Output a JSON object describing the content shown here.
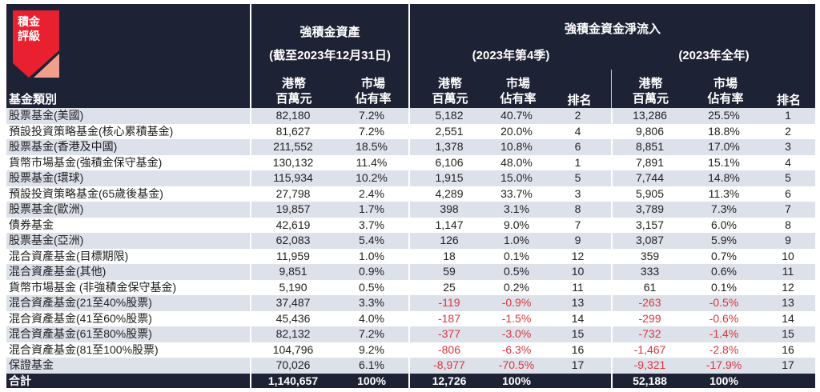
{
  "logo": {
    "text": "積金評級",
    "line1": "積金",
    "line2": "評級",
    "colors": {
      "red": "#e8202f",
      "salmon": "#f0a08a"
    }
  },
  "header": {
    "category": "基金類別",
    "assets_title": "強積金資產",
    "assets_sub": "(截至2023年12月31日)",
    "flow_title": "強積金資金淨流入",
    "q4_sub": "(2023年第4季)",
    "year_sub": "(2023年全年)",
    "hkd_l1": "港幣",
    "hkd_l2": "百萬元",
    "share_l1": "市場",
    "share_l2": "佔有率",
    "rank": "排名"
  },
  "colors": {
    "header_bg": "#1e2235",
    "stripe": "#dde1ea",
    "negative": "#d9363e"
  },
  "rows": [
    {
      "name": "股票基金(美國)",
      "assets": "82,180",
      "share": "7.2%",
      "q4": "5,182",
      "q4share": "40.7%",
      "q4rank": "2",
      "yr": "13,286",
      "yrshare": "25.5%",
      "yrrank": "1"
    },
    {
      "name": "預設投資策略基金(核心累積基金)",
      "assets": "81,627",
      "share": "7.2%",
      "q4": "2,551",
      "q4share": "20.0%",
      "q4rank": "4",
      "yr": "9,806",
      "yrshare": "18.8%",
      "yrrank": "2"
    },
    {
      "name": "股票基金(香港及中國)",
      "assets": "211,552",
      "share": "18.5%",
      "q4": "1,378",
      "q4share": "10.8%",
      "q4rank": "6",
      "yr": "8,851",
      "yrshare": "17.0%",
      "yrrank": "3"
    },
    {
      "name": "貨幣市場基金(強積金保守基金)",
      "assets": "130,132",
      "share": "11.4%",
      "q4": "6,106",
      "q4share": "48.0%",
      "q4rank": "1",
      "yr": "7,891",
      "yrshare": "15.1%",
      "yrrank": "4"
    },
    {
      "name": "股票基金(環球)",
      "assets": "115,934",
      "share": "10.2%",
      "q4": "1,915",
      "q4share": "15.0%",
      "q4rank": "5",
      "yr": "7,744",
      "yrshare": "14.8%",
      "yrrank": "5"
    },
    {
      "name": "預設投資策略基金(65歲後基金)",
      "assets": "27,798",
      "share": "2.4%",
      "q4": "4,289",
      "q4share": "33.7%",
      "q4rank": "3",
      "yr": "5,905",
      "yrshare": "11.3%",
      "yrrank": "6"
    },
    {
      "name": "股票基金(歐洲)",
      "assets": "19,857",
      "share": "1.7%",
      "q4": "398",
      "q4share": "3.1%",
      "q4rank": "8",
      "yr": "3,789",
      "yrshare": "7.3%",
      "yrrank": "7"
    },
    {
      "name": "債券基金",
      "assets": "42,619",
      "share": "3.7%",
      "q4": "1,147",
      "q4share": "9.0%",
      "q4rank": "7",
      "yr": "3,157",
      "yrshare": "6.0%",
      "yrrank": "8"
    },
    {
      "name": "股票基金(亞洲)",
      "assets": "62,083",
      "share": "5.4%",
      "q4": "126",
      "q4share": "1.0%",
      "q4rank": "9",
      "yr": "3,087",
      "yrshare": "5.9%",
      "yrrank": "9"
    },
    {
      "name": "混合資產基金(目標期限)",
      "assets": "11,959",
      "share": "1.0%",
      "q4": "18",
      "q4share": "0.1%",
      "q4rank": "12",
      "yr": "359",
      "yrshare": "0.7%",
      "yrrank": "10"
    },
    {
      "name": "混合資產基金(其他)",
      "assets": "9,851",
      "share": "0.9%",
      "q4": "59",
      "q4share": "0.5%",
      "q4rank": "10",
      "yr": "333",
      "yrshare": "0.6%",
      "yrrank": "11"
    },
    {
      "name": "貨幣市場基金 (非強積金保守基金)",
      "assets": "5,190",
      "share": "0.5%",
      "q4": "25",
      "q4share": "0.2%",
      "q4rank": "11",
      "yr": "61",
      "yrshare": "0.1%",
      "yrrank": "12"
    },
    {
      "name": "混合資產基金(21至40%股票)",
      "assets": "37,487",
      "share": "3.3%",
      "q4": "-119",
      "q4share": "-0.9%",
      "q4rank": "13",
      "yr": "-263",
      "yrshare": "-0.5%",
      "yrrank": "13"
    },
    {
      "name": "混合資產基金(41至60%股票)",
      "assets": "45,436",
      "share": "4.0%",
      "q4": "-187",
      "q4share": "-1.5%",
      "q4rank": "14",
      "yr": "-299",
      "yrshare": "-0.6%",
      "yrrank": "14"
    },
    {
      "name": "混合資產基金(61至80%股票)",
      "assets": "82,132",
      "share": "7.2%",
      "q4": "-377",
      "q4share": "-3.0%",
      "q4rank": "15",
      "yr": "-732",
      "yrshare": "-1.4%",
      "yrrank": "15"
    },
    {
      "name": "混合資產基金(81至100%股票)",
      "assets": "104,796",
      "share": "9.2%",
      "q4": "-806",
      "q4share": "-6.3%",
      "q4rank": "16",
      "yr": "-1,467",
      "yrshare": "-2.8%",
      "yrrank": "16"
    },
    {
      "name": "保證基金",
      "assets": "70,026",
      "share": "6.1%",
      "q4": "-8,977",
      "q4share": "-70.5%",
      "q4rank": "17",
      "yr": "-9,321",
      "yrshare": "-17.9%",
      "yrrank": "17"
    }
  ],
  "total": {
    "name": "合計",
    "assets": "1,140,657",
    "share": "100%",
    "q4": "12,726",
    "q4share": "100%",
    "yr": "52,188",
    "yrshare": "100%"
  }
}
